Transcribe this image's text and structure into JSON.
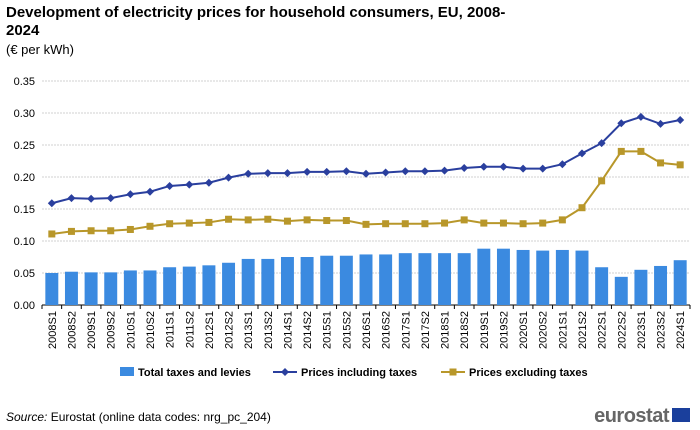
{
  "chart_data": {
    "type": "bar",
    "title": "Development of electricity prices for household consumers, EU, 2008-2024",
    "subtitle": "(€ per kWh)",
    "ylim": [
      0,
      0.35
    ],
    "yticks": [
      "0.00",
      "0.05",
      "0.10",
      "0.15",
      "0.20",
      "0.25",
      "0.30",
      "0.35"
    ],
    "grid": true,
    "legend_placement": "bottom",
    "categories": [
      "2008S1",
      "2008S2",
      "2009S1",
      "2009S2",
      "2010S1",
      "2010S2",
      "2011S1",
      "2011S2",
      "2012S1",
      "2012S2",
      "2013S1",
      "2013S2",
      "2014S1",
      "2014S2",
      "2015S1",
      "2015S2",
      "2016S1",
      "2016S2",
      "2017S1",
      "2017S2",
      "2018S1",
      "2018S2",
      "2019S1",
      "2019S2",
      "2020S1",
      "2020S2",
      "2021S1",
      "2021S2",
      "2022S1",
      "2022S2",
      "2023S1",
      "2023S2",
      "2024S1"
    ],
    "series": [
      {
        "name": "Total taxes and levies",
        "type": "bar",
        "color": "#3b8ae0",
        "values": [
          0.05,
          0.052,
          0.051,
          0.051,
          0.054,
          0.054,
          0.059,
          0.06,
          0.062,
          0.066,
          0.072,
          0.072,
          0.075,
          0.075,
          0.077,
          0.077,
          0.079,
          0.079,
          0.081,
          0.081,
          0.081,
          0.081,
          0.088,
          0.088,
          0.086,
          0.085,
          0.086,
          0.085,
          0.059,
          0.044,
          0.055,
          0.061,
          0.07
        ]
      },
      {
        "name": "Prices including taxes",
        "type": "line",
        "color": "#2a3f9e",
        "marker": "diamond",
        "values": [
          0.159,
          0.167,
          0.166,
          0.167,
          0.173,
          0.177,
          0.186,
          0.188,
          0.191,
          0.199,
          0.205,
          0.206,
          0.206,
          0.208,
          0.208,
          0.209,
          0.205,
          0.207,
          0.209,
          0.209,
          0.21,
          0.214,
          0.216,
          0.216,
          0.213,
          0.213,
          0.22,
          0.237,
          0.253,
          0.284,
          0.294,
          0.283,
          0.289
        ]
      },
      {
        "name": "Prices excluding taxes",
        "type": "line",
        "color": "#b8972a",
        "marker": "square",
        "values": [
          0.111,
          0.115,
          0.116,
          0.116,
          0.118,
          0.123,
          0.127,
          0.128,
          0.129,
          0.134,
          0.133,
          0.134,
          0.131,
          0.133,
          0.132,
          0.132,
          0.126,
          0.127,
          0.127,
          0.127,
          0.128,
          0.133,
          0.128,
          0.128,
          0.127,
          0.128,
          0.133,
          0.152,
          0.194,
          0.24,
          0.24,
          0.222,
          0.219
        ]
      }
    ]
  },
  "source": {
    "label": "Source:",
    "text": " Eurostat (online data codes: nrg_pc_204)"
  },
  "logo": "eurostat"
}
